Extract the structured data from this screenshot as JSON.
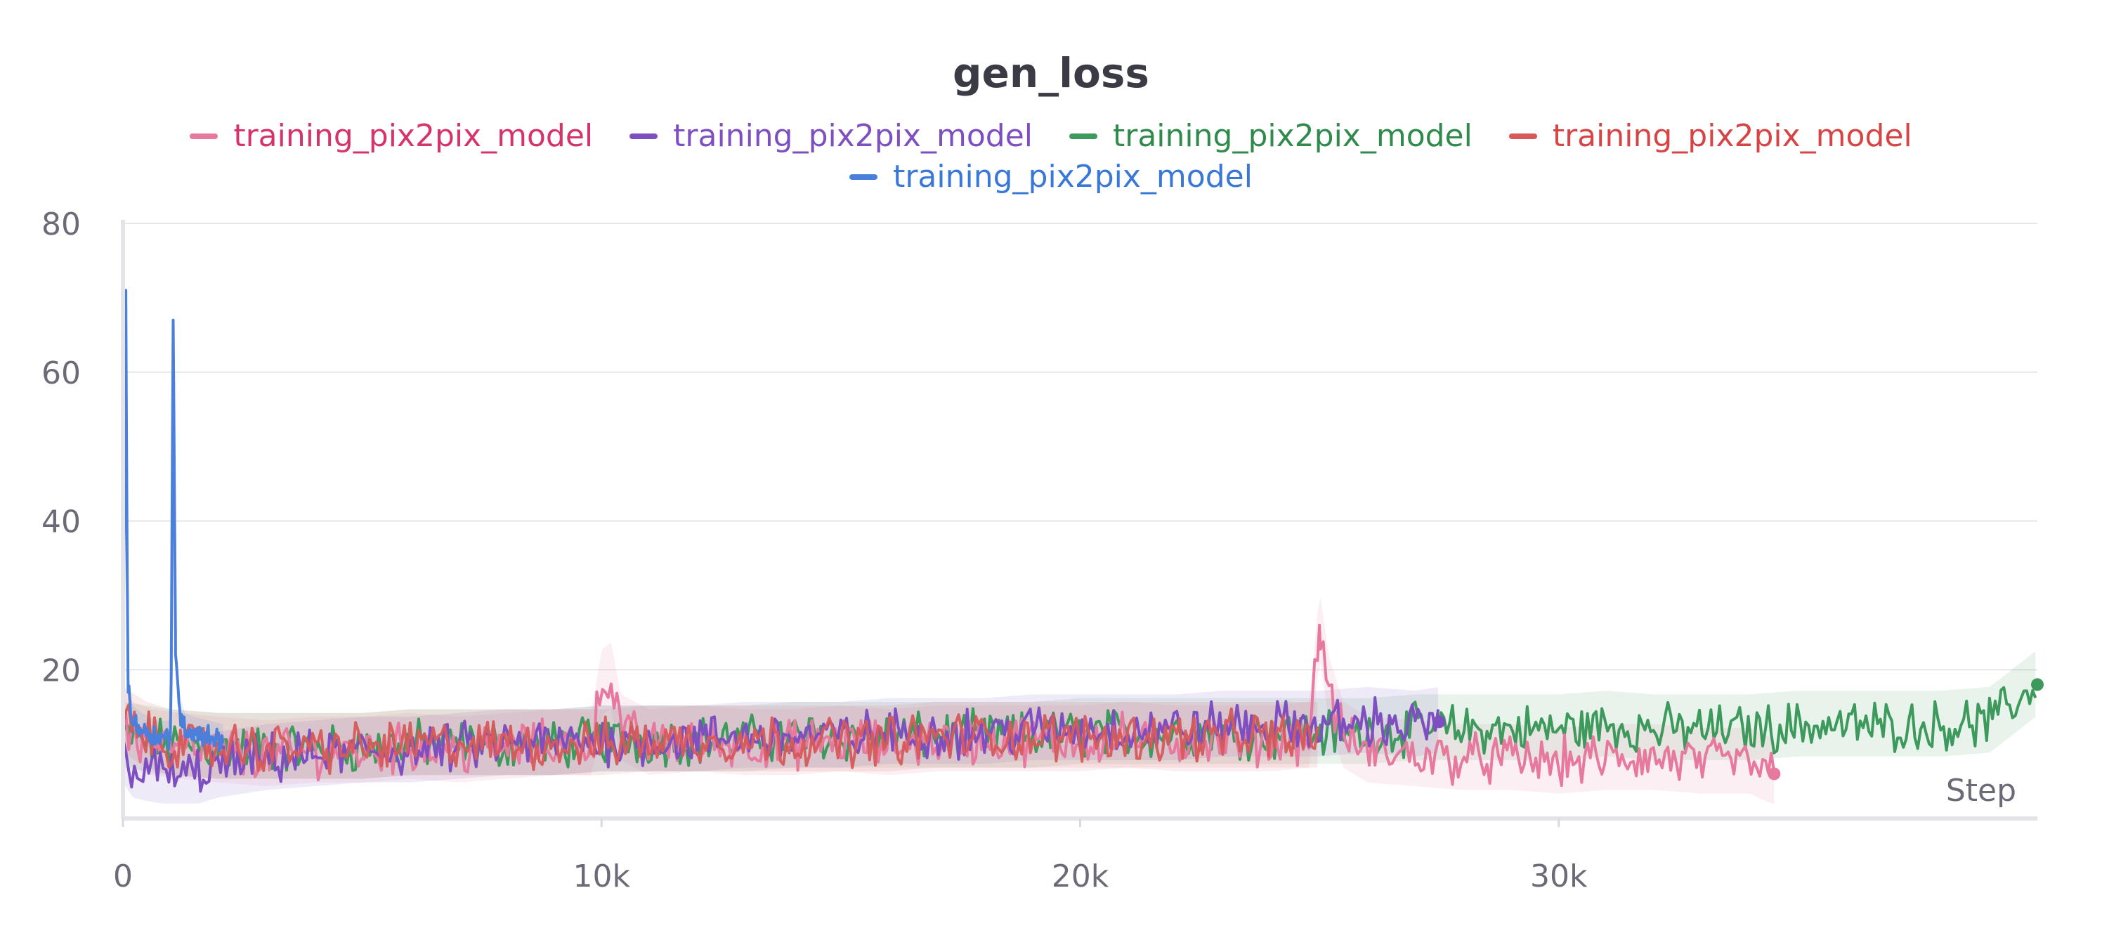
{
  "chart_data": {
    "type": "line",
    "title": "gen_loss",
    "xlabel": "Step",
    "ylabel": "",
    "xlim": [
      0,
      40000
    ],
    "ylim": [
      0,
      80
    ],
    "x_ticks": [
      0,
      10000,
      20000,
      30000
    ],
    "x_tick_labels": [
      "0",
      "10k",
      "20k",
      "30k"
    ],
    "y_ticks": [
      20,
      40,
      60,
      80
    ],
    "y_tick_labels": [
      "20",
      "40",
      "60",
      "80"
    ],
    "grid": true,
    "legend_placement": "top",
    "series": [
      {
        "name": "training_pix2pix_model",
        "color": "#e7799f",
        "label_color": "#d6336c",
        "x": [
          0,
          200,
          600,
          1200,
          2000,
          3000,
          4000,
          5000,
          6000,
          7000,
          8000,
          9000,
          9800,
          10000,
          10200,
          10400,
          11000,
          12000,
          13000,
          14000,
          15000,
          16000,
          17000,
          18000,
          19000,
          20000,
          21000,
          22000,
          23000,
          24000,
          24800,
          25000,
          25200,
          25500,
          26000,
          27000,
          28000,
          29000,
          30000,
          31000,
          32000,
          33000,
          34000,
          34500
        ],
        "y": [
          13,
          11,
          10,
          9.5,
          9,
          8.5,
          9,
          9,
          9.5,
          9,
          9.5,
          10,
          10,
          18,
          19,
          12,
          10,
          10.5,
          10,
          10,
          10.5,
          10,
          10.5,
          10.5,
          10.5,
          10.5,
          11,
          10.5,
          10.5,
          10.5,
          11,
          26,
          17,
          11,
          9,
          8.5,
          8,
          8,
          7.5,
          8,
          8,
          7.5,
          7.5,
          6
        ],
        "end_marker": true
      },
      {
        "name": "training_pix2pix_model",
        "color": "#7e4fc1",
        "label_color": "#7e4fc1",
        "x": [
          0,
          200,
          500,
          1000,
          1500,
          2000,
          3000,
          4000,
          5000,
          6000,
          7000,
          8000,
          9000,
          10000,
          11000,
          12000,
          13000,
          14000,
          15000,
          16000,
          17000,
          18000,
          19000,
          20000,
          21000,
          22000,
          23000,
          24000,
          25000,
          26000,
          27000,
          27500
        ],
        "y": [
          9,
          7,
          6.5,
          6,
          6,
          7,
          8,
          8.5,
          9,
          9,
          9.5,
          10,
          10,
          10.5,
          10.5,
          10.5,
          11,
          11,
          11,
          11.5,
          11.5,
          11.5,
          12,
          12,
          12,
          12,
          12.5,
          12.5,
          12.5,
          13,
          12.5,
          13
        ],
        "end_marker": true
      },
      {
        "name": "training_pix2pix_model",
        "color": "#3e9a5c",
        "label_color": "#2f8a4c",
        "x": [
          0,
          1000,
          2000,
          3000,
          4000,
          5000,
          6000,
          7000,
          8000,
          9000,
          10000,
          11000,
          12000,
          13000,
          14000,
          15000,
          16000,
          17000,
          18000,
          19000,
          20000,
          21000,
          22000,
          23000,
          24000,
          25000,
          26000,
          27000,
          28000,
          29000,
          30000,
          31000,
          32000,
          33000,
          34000,
          35000,
          36000,
          37000,
          38000,
          39000,
          40000
        ],
        "y": [
          11,
          10,
          9.5,
          9.5,
          9.5,
          9.5,
          10,
          10,
          10,
          10,
          10.5,
          10.5,
          10.5,
          10.5,
          11,
          11,
          11,
          11,
          11,
          11,
          11.5,
          11.5,
          11.5,
          11.5,
          11.5,
          11.5,
          11.5,
          12,
          12,
          12,
          12,
          12.5,
          12,
          12,
          12,
          12.5,
          12.5,
          12.5,
          12.5,
          13,
          18
        ],
        "end_marker": true
      },
      {
        "name": "training_pix2pix_model",
        "color": "#d65a5a",
        "label_color": "#d64545",
        "x": [
          0,
          500,
          1000,
          2000,
          3000,
          4000,
          5000,
          6000,
          7000,
          8000,
          9000,
          10000,
          11000,
          12000,
          13000,
          14000,
          15000,
          16000,
          17000,
          18000,
          19000,
          20000,
          21000,
          22000,
          23000,
          24000,
          25000
        ],
        "y": [
          13,
          11,
          10,
          9.5,
          9.5,
          9.5,
          9.5,
          10,
          10,
          10,
          10,
          10,
          10.5,
          10.5,
          10.5,
          10.5,
          10.5,
          10.5,
          11,
          11,
          11,
          11,
          11,
          11,
          11,
          11,
          11
        ],
        "end_marker": false
      },
      {
        "name": "training_pix2pix_model",
        "color": "#4a7fdb",
        "label_color": "#3a78d8",
        "x": [
          0,
          60,
          100,
          200,
          400,
          700,
          900,
          1000,
          1050,
          1100,
          1200,
          1300,
          1500,
          1800,
          2100
        ],
        "y": [
          16,
          71,
          18,
          13,
          12,
          11,
          11,
          11,
          67,
          22,
          14,
          12,
          11.5,
          11,
          10.5
        ],
        "end_marker": false
      }
    ]
  }
}
